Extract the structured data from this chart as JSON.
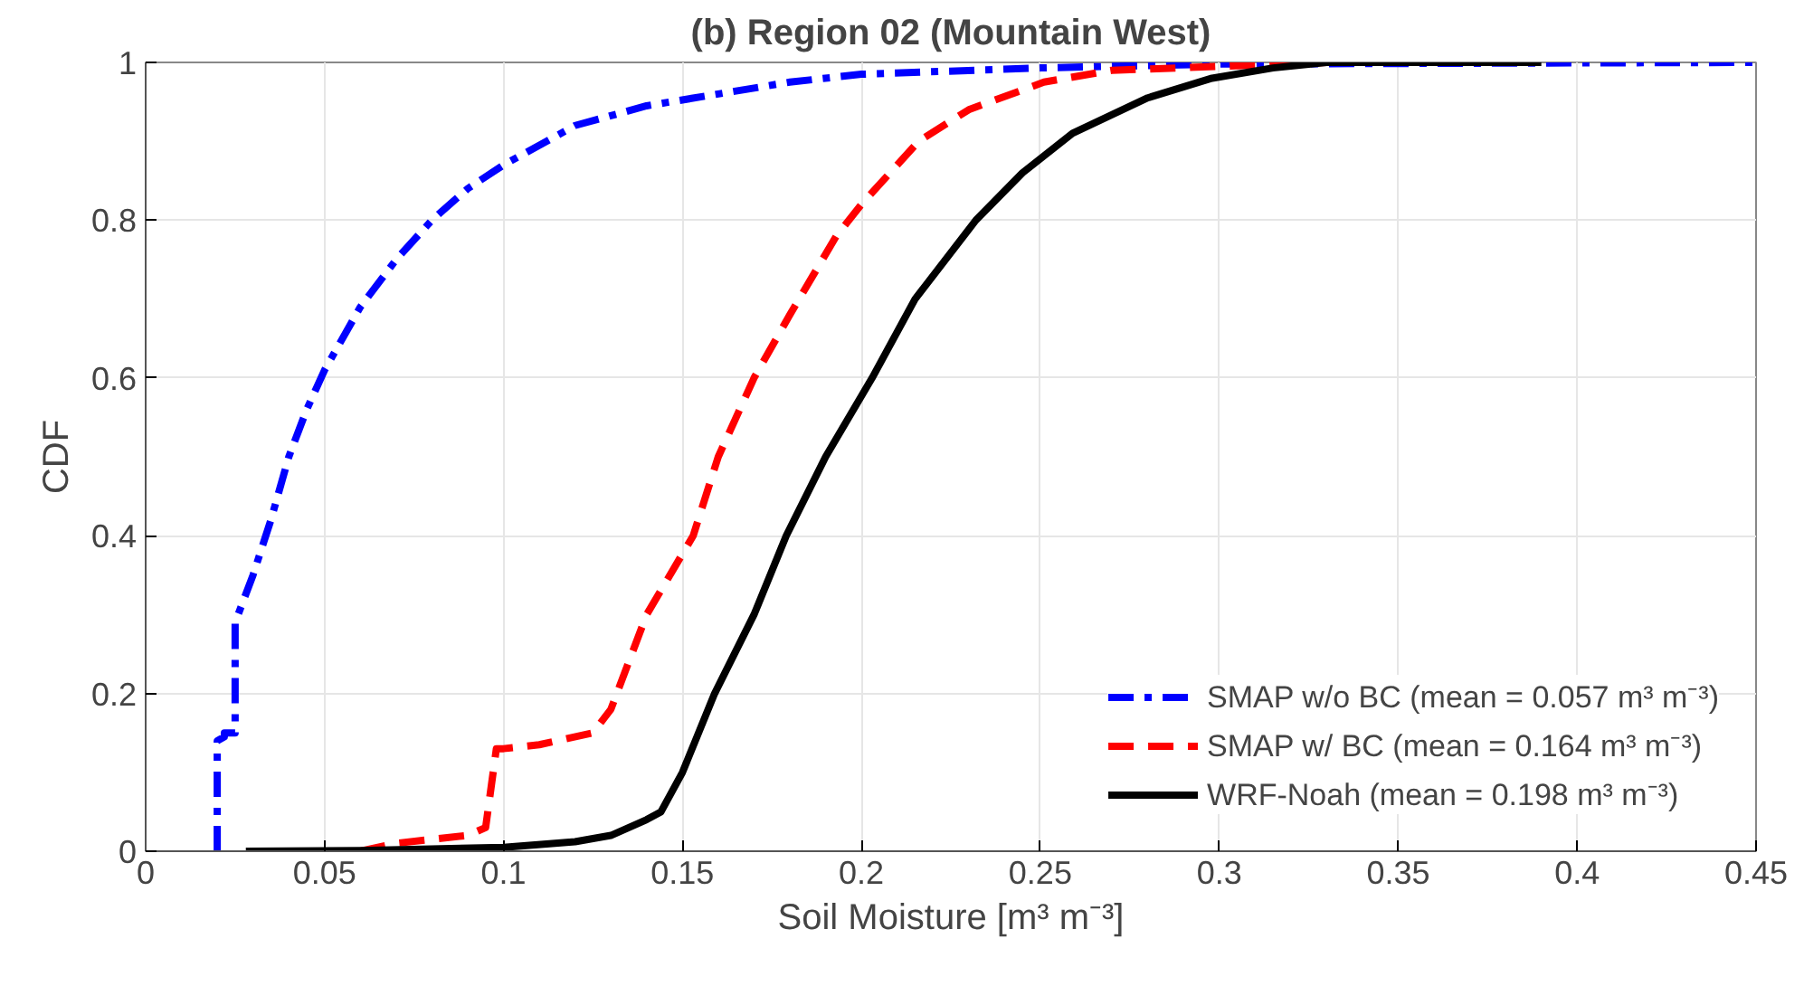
{
  "chart_data": {
    "type": "line",
    "title": "(b) Region 02 (Mountain West)",
    "xlabel": "Soil Moisture [m³ m⁻³]",
    "ylabel": "CDF",
    "xlim": [
      0,
      0.45
    ],
    "ylim": [
      0,
      1
    ],
    "xticks": [
      0,
      0.05,
      0.1,
      0.15,
      0.2,
      0.25,
      0.3,
      0.35,
      0.4,
      0.45
    ],
    "yticks": [
      0,
      0.2,
      0.4,
      0.6,
      0.8,
      1
    ],
    "grid": true,
    "legend": "bottom right",
    "marker": "none",
    "series": [
      {
        "name": "SMAP w/o BC (mean = 0.057 m³ m⁻³)",
        "color": "#0000ff",
        "line_style": "dashdot",
        "x": [
          0.02,
          0.02,
          0.022,
          0.022,
          0.025,
          0.025,
          0.03,
          0.035,
          0.04,
          0.045,
          0.05,
          0.06,
          0.07,
          0.08,
          0.09,
          0.1,
          0.12,
          0.14,
          0.16,
          0.18,
          0.2,
          0.25,
          0.3,
          0.45
        ],
        "values": [
          0,
          0.14,
          0.145,
          0.15,
          0.15,
          0.29,
          0.35,
          0.42,
          0.5,
          0.56,
          0.61,
          0.69,
          0.75,
          0.8,
          0.84,
          0.87,
          0.92,
          0.945,
          0.96,
          0.975,
          0.985,
          0.993,
          0.998,
          1
        ]
      },
      {
        "name": "SMAP w/ BC (mean = 0.164 m³ m⁻³)",
        "color": "#ff0000",
        "line_style": "dashed",
        "x": [
          0.06,
          0.07,
          0.08,
          0.09,
          0.095,
          0.098,
          0.1,
          0.11,
          0.125,
          0.13,
          0.14,
          0.153,
          0.16,
          0.17,
          0.18,
          0.193,
          0.2,
          0.216,
          0.23,
          0.251,
          0.27,
          0.3,
          0.33
        ],
        "values": [
          0,
          0.01,
          0.015,
          0.02,
          0.03,
          0.13,
          0.13,
          0.135,
          0.15,
          0.18,
          0.3,
          0.4,
          0.5,
          0.6,
          0.68,
          0.78,
          0.82,
          0.9,
          0.94,
          0.975,
          0.99,
          0.995,
          1
        ]
      },
      {
        "name": "WRF-Noah (mean = 0.198 m³ m⁻³)",
        "color": "#000000",
        "line_style": "solid",
        "x": [
          0.028,
          0.06,
          0.1,
          0.12,
          0.13,
          0.14,
          0.144,
          0.15,
          0.159,
          0.17,
          0.179,
          0.19,
          0.203,
          0.215,
          0.232,
          0.245,
          0.259,
          0.28,
          0.298,
          0.315,
          0.33,
          0.36,
          0.39
        ],
        "values": [
          0,
          0.001,
          0.005,
          0.012,
          0.02,
          0.04,
          0.05,
          0.1,
          0.2,
          0.3,
          0.4,
          0.5,
          0.6,
          0.7,
          0.8,
          0.86,
          0.91,
          0.955,
          0.98,
          0.993,
          1,
          1,
          1
        ]
      }
    ]
  }
}
